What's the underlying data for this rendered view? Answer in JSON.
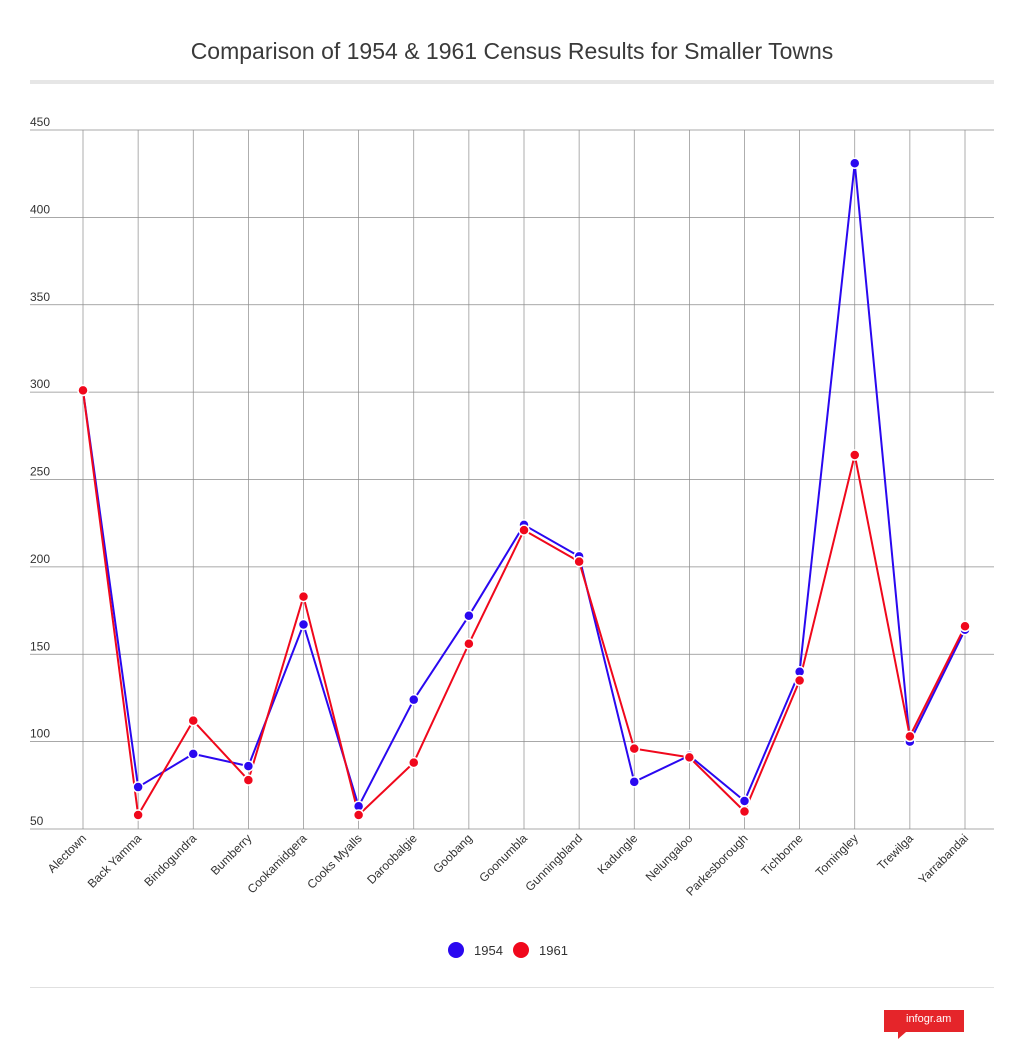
{
  "chart_data": {
    "type": "line",
    "title": "Comparison of 1954 & 1961 Census Results for Smaller Towns",
    "categories": [
      "Alectown",
      "Back Yamma",
      "Bindogundra",
      "Bumberry",
      "Cookamidgera",
      "Cooks Myalls",
      "Daroobalgie",
      "Goobang",
      "Goonumbla",
      "Gunningbland",
      "Kadungle",
      "Nelungaloo",
      "Parkesborough",
      "Tichborne",
      "Tomingley",
      "Trewilga",
      "Yarrabandai"
    ],
    "series": [
      {
        "name": "1954",
        "color": "#2a08f0",
        "values": [
          301,
          74,
          93,
          86,
          167,
          63,
          124,
          172,
          224,
          206,
          77,
          92,
          66,
          140,
          431,
          100,
          164
        ]
      },
      {
        "name": "1961",
        "color": "#f0081c",
        "values": [
          301,
          58,
          112,
          78,
          183,
          58,
          88,
          156,
          221,
          203,
          96,
          91,
          60,
          135,
          264,
          103,
          166
        ]
      }
    ],
    "yticks": [
      50,
      100,
      150,
      200,
      250,
      300,
      350,
      400,
      450
    ],
    "ylim": [
      50,
      450
    ],
    "grid": true,
    "legend_position": "bottom"
  },
  "branding": {
    "text": "infogr.am"
  }
}
